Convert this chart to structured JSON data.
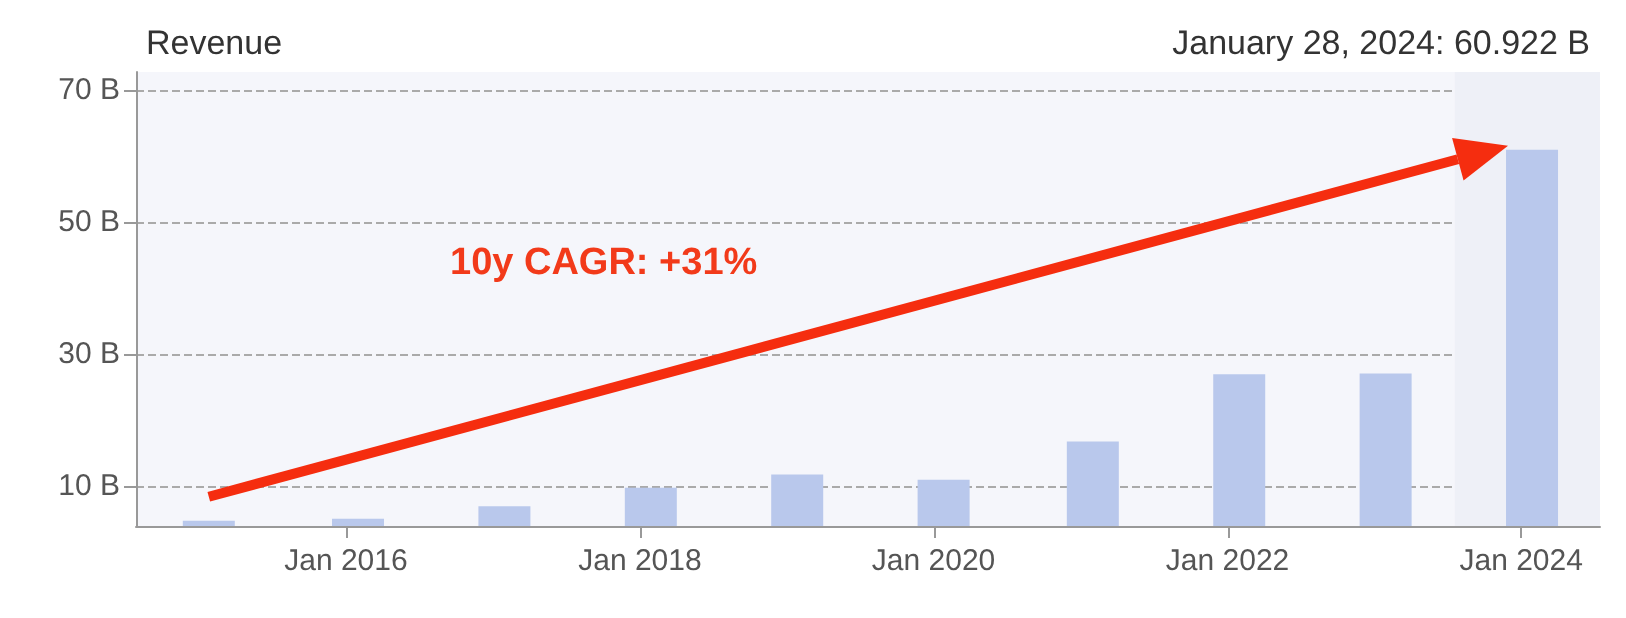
{
  "chart_data": {
    "type": "bar",
    "title": "Revenue",
    "subtitle": "January 28, 2024: 60.922 B",
    "annotations": [
      "10y CAGR: +31%"
    ],
    "x": [
      "2015-01-25",
      "2016-01-31",
      "2017-01-29",
      "2018-01-28",
      "2019-01-27",
      "2020-01-26",
      "2021-01-31",
      "2022-01-30",
      "2023-01-29",
      "2024-01-28"
    ],
    "series": [
      {
        "color": "#b9c8ec",
        "values": [
          4.7,
          5.0,
          6.9,
          9.7,
          11.7,
          10.9,
          16.7,
          26.9,
          27.0,
          60.922
        ]
      }
    ],
    "xlim": [
      "2014-07-28",
      "2024-07-15"
    ],
    "xticks": [
      {
        "value": "2016-01-01",
        "label": "Jan 2016"
      },
      {
        "value": "2018-01-01",
        "label": "Jan 2018"
      },
      {
        "value": "2020-01-01",
        "label": "Jan 2020"
      },
      {
        "value": "2022-01-01",
        "label": "Jan 2022"
      },
      {
        "value": "2024-01-01",
        "label": "Jan 2024"
      }
    ],
    "ylim": [
      3.9,
      72.7
    ],
    "yticks": [
      {
        "value": 10,
        "label": "10 B"
      },
      {
        "value": 30,
        "label": "30 B"
      },
      {
        "value": 50,
        "label": "50 B"
      },
      {
        "value": 70,
        "label": "70 B"
      }
    ],
    "bands": [
      {
        "axis": "x",
        "from": "2023-07-20",
        "to": "2024-07-15",
        "color": "#eef0f7"
      }
    ],
    "grid": "y"
  }
}
